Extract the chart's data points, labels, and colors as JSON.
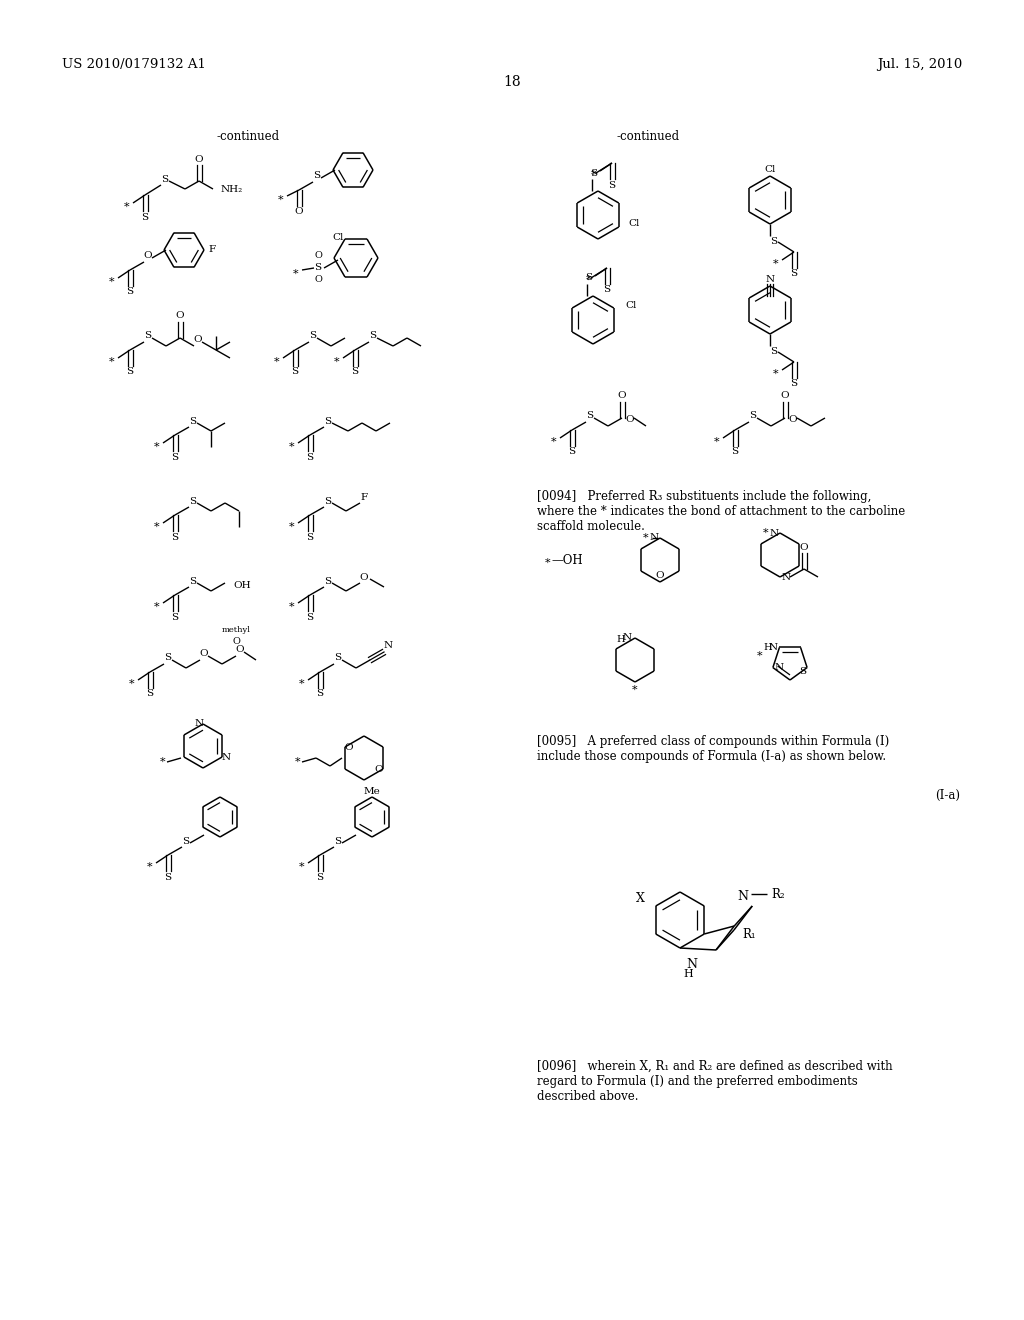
{
  "page_number": "18",
  "left_header": "US 2010/0179132 A1",
  "right_header": "Jul. 15, 2010",
  "background_color": "#ffffff",
  "text_color": "#000000",
  "left_continued": "-continued",
  "right_continued": "-continued"
}
